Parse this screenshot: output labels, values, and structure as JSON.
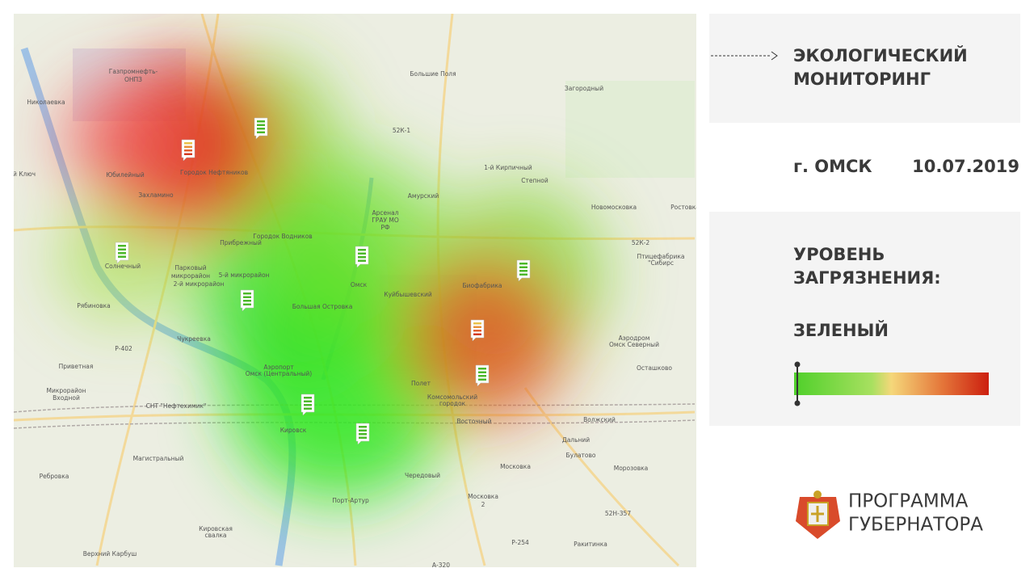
{
  "header": {
    "title_lines": [
      "ЭКОЛОГИЧЕСКИЙ",
      "МОНИТОРИНГ"
    ]
  },
  "info": {
    "city": "г. ОМСК",
    "date": "10.07.2019"
  },
  "pollution": {
    "label_lines": [
      "УРОВЕНЬ",
      "ЗАГРЯЗНЕНИЯ:"
    ],
    "level": "ЗЕЛЕНЫЙ"
  },
  "footer": {
    "lines": [
      "ПРОГРАММА",
      "ГУБЕРНАТОРА"
    ]
  },
  "map": {
    "labels": [
      "Газпромнефть-",
      "ОНПЗ",
      "Николаевка",
      "Юбилейный",
      "Городок Нефтяников",
      "Захламино",
      "й Ключ",
      "Большие Поля",
      "52К-1",
      "Загородный",
      "1-й Кирпичный",
      "Степной",
      "Амурский",
      "Арсенал",
      "ГРАУ МО",
      "РФ",
      "Новомосковка",
      "Ростовка",
      "Прибрежный",
      "Городок Водников",
      "Солнечный",
      "Парковый",
      "микрорайон",
      "2-й микрорайон",
      "5-й микрорайон",
      "Рябиновка",
      "Омск",
      "Куйбышевский",
      "Биофабрика",
      "52К-2",
      "Птицефабрика",
      "\"Сибирс",
      "Большая Островка",
      "Чукреевка",
      "Аэропорт",
      "Омск (Центральный)",
      "Аэродром",
      "Омск Северный",
      "Осташково",
      "Приветная",
      "Микрорайон",
      "Входной",
      "СНТ \"Нефтехимик\"",
      "Полет",
      "Комсомольский",
      "городок",
      "Восточный",
      "Волжский",
      "Дальний",
      "Булатово",
      "Магистральный",
      "Ребровка",
      "Кировск",
      "Чередовый",
      "Московка",
      "Морозовка",
      "Московка",
      "2",
      "52Н-357",
      "Порт-Артур",
      "Р-254",
      "Ракитинка",
      "Кировская",
      "свалка",
      "Верхний Карбуш",
      "А-320",
      "Р-402"
    ]
  }
}
